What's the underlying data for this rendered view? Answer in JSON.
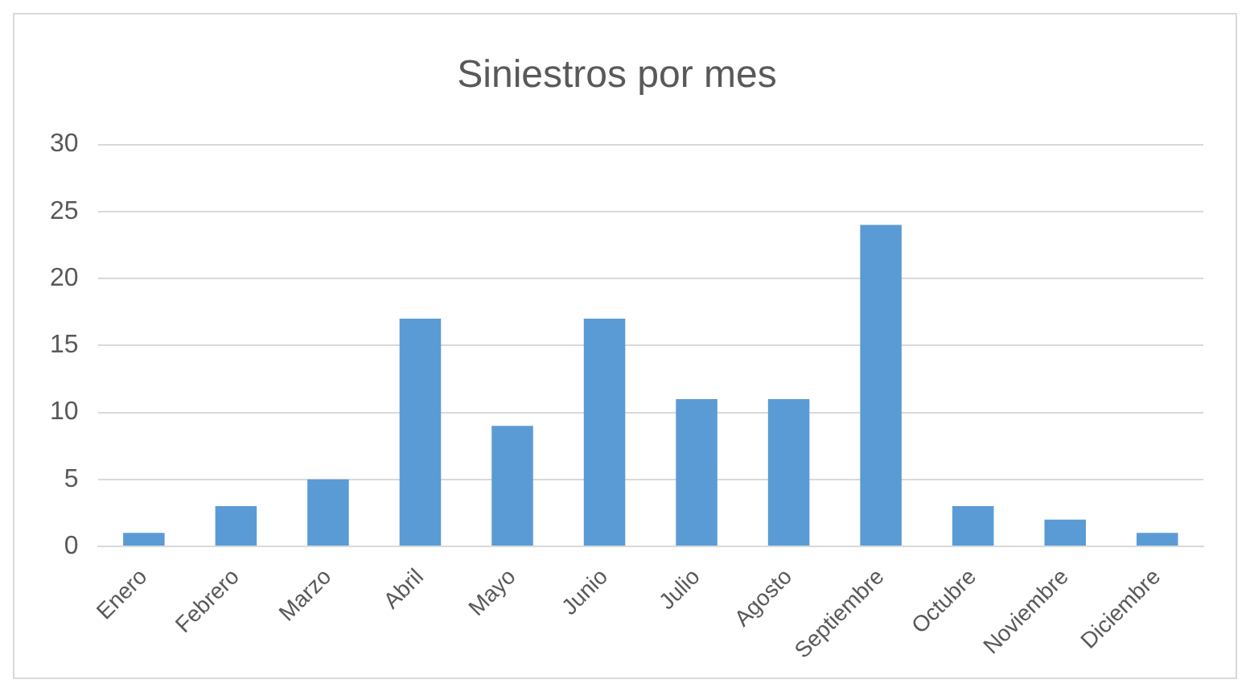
{
  "chart_data": {
    "type": "bar",
    "title": "Siniestros por mes",
    "categories": [
      "Enero",
      "Febrero",
      "Marzo",
      "Abril",
      "Mayo",
      "Junio",
      "Julio",
      "Agosto",
      "Septiembre",
      "Octubre",
      "Noviembre",
      "Diciembre"
    ],
    "values": [
      1,
      3,
      5,
      17,
      9,
      17,
      11,
      11,
      24,
      3,
      2,
      1
    ],
    "color": "#5b9bd5",
    "ylim": [
      0,
      30
    ],
    "yticks": [
      0,
      5,
      10,
      15,
      20,
      25,
      30
    ],
    "grid": "y",
    "legend": false
  }
}
